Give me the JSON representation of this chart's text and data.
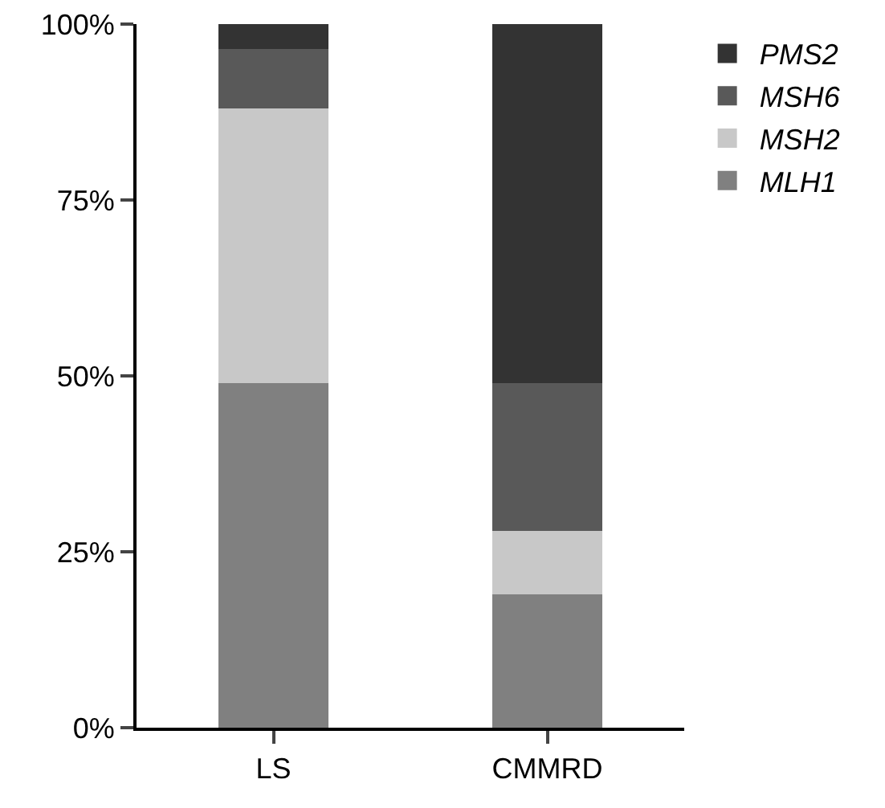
{
  "chart_data": {
    "type": "bar",
    "stacked": true,
    "categories": [
      "LS",
      "CMMRD"
    ],
    "series": [
      {
        "name": "MLH1",
        "color": "#808080",
        "values": [
          49,
          19
        ]
      },
      {
        "name": "MSH2",
        "color": "#c8c8c8",
        "values": [
          39,
          9
        ]
      },
      {
        "name": "MSH6",
        "color": "#595959",
        "values": [
          8.5,
          21
        ]
      },
      {
        "name": "PMS2",
        "color": "#333333",
        "values": [
          3.5,
          51
        ]
      }
    ],
    "ylim": [
      0,
      100
    ],
    "yticks": [
      {
        "value": 0,
        "label": "0%"
      },
      {
        "value": 25,
        "label": "25%"
      },
      {
        "value": 50,
        "label": "50%"
      },
      {
        "value": 75,
        "label": "75%"
      },
      {
        "value": 100,
        "label": "100%"
      }
    ],
    "grid": false,
    "legend": "top right"
  }
}
